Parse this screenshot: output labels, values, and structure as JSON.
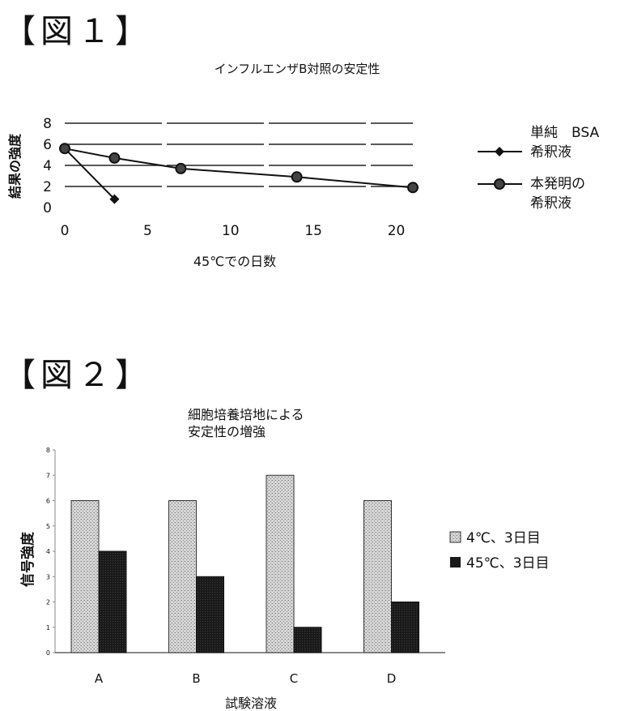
{
  "figures": [
    {
      "label": "【図１】"
    },
    {
      "label": "【図２】"
    }
  ],
  "chart_data": [
    {
      "type": "line",
      "title": "インフルエンザB対照の安定性",
      "xlabel": "45℃での日数",
      "ylabel": "結果の強度",
      "xlim": [
        0,
        21
      ],
      "ylim": [
        0,
        8
      ],
      "xticks": [
        "0",
        "5",
        "10",
        "15",
        "20"
      ],
      "yticks": [
        "0",
        "2",
        "4",
        "6",
        "8"
      ],
      "grid": true,
      "legend_position": "right",
      "series": [
        {
          "name": "単純　BSA 希釈液",
          "name_line1": "単純　BSA",
          "name_line2": "希釈液",
          "marker": "diamond",
          "color": "#111111",
          "x": [
            0,
            3
          ],
          "y": [
            5.6,
            0.8
          ]
        },
        {
          "name": "本発明の 希釈液",
          "name_line1": "本発明の",
          "name_line2": "希釈液",
          "marker": "circle",
          "color": "#111111",
          "x": [
            0,
            3,
            7,
            14,
            21
          ],
          "y": [
            5.6,
            4.7,
            3.7,
            2.9,
            1.9
          ]
        }
      ]
    },
    {
      "type": "bar",
      "title": "細胞培養培地による 安定性の増強",
      "title_line1": "細胞培養培地による",
      "title_line2": "安定性の増強",
      "xlabel": "試験溶液",
      "ylabel": "信号強度",
      "categories": [
        "A",
        "B",
        "C",
        "D"
      ],
      "ylim": [
        0,
        8
      ],
      "yticks": [
        "0",
        "1",
        "2",
        "3",
        "4",
        "5",
        "6",
        "7",
        "8"
      ],
      "legend_position": "right",
      "series": [
        {
          "name": "4℃、3日目",
          "color": "#c9c9c9",
          "values": [
            6,
            6,
            7,
            6
          ]
        },
        {
          "name": "45℃、3日目",
          "color": "#1a1a1a",
          "values": [
            4,
            3,
            1,
            2
          ]
        }
      ]
    }
  ]
}
